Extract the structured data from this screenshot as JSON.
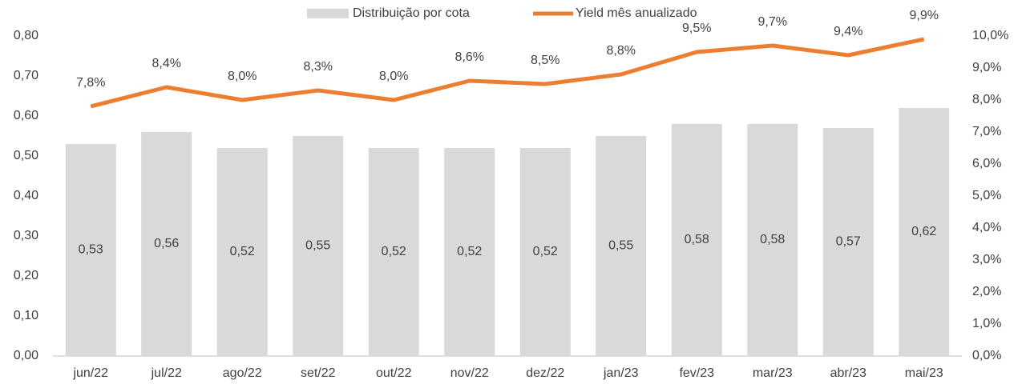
{
  "chart_data": {
    "type": "bar_line",
    "categories": [
      "jun/22",
      "jul/22",
      "ago/22",
      "set/22",
      "out/22",
      "nov/22",
      "dez/22",
      "jan/23",
      "fev/23",
      "mar/23",
      "abr/23",
      "mai/23"
    ],
    "series": [
      {
        "name": "Distribuição por cota",
        "type": "bar",
        "color": "#d9d9d9",
        "values": [
          0.53,
          0.56,
          0.52,
          0.55,
          0.52,
          0.52,
          0.52,
          0.55,
          0.58,
          0.58,
          0.57,
          0.62
        ],
        "value_labels": [
          "0,53",
          "0,56",
          "0,52",
          "0,55",
          "0,52",
          "0,52",
          "0,52",
          "0,55",
          "0,58",
          "0,58",
          "0,57",
          "0,62"
        ]
      },
      {
        "name": "Yield mês anualizado",
        "type": "line",
        "axis": "y2",
        "color": "#ed7d31",
        "values": [
          7.8,
          8.4,
          8.0,
          8.3,
          8.0,
          8.6,
          8.5,
          8.8,
          9.5,
          9.7,
          9.4,
          9.9
        ],
        "value_labels": [
          "7,8%",
          "8,4%",
          "8,0%",
          "8,3%",
          "8,0%",
          "8,6%",
          "8,5%",
          "8,8%",
          "9,5%",
          "9,7%",
          "9,4%",
          "9,9%"
        ]
      }
    ],
    "ylim": [
      0,
      0.8
    ],
    "yticks": [
      {
        "value": 0,
        "label": "0,00"
      },
      {
        "value": 0.1,
        "label": "0,10"
      },
      {
        "value": 0.2,
        "label": "0,20"
      },
      {
        "value": 0.3,
        "label": "0,30"
      },
      {
        "value": 0.4,
        "label": "0,40"
      },
      {
        "value": 0.5,
        "label": "0,50"
      },
      {
        "value": 0.6,
        "label": "0,60"
      },
      {
        "value": 0.7,
        "label": "0,70"
      },
      {
        "value": 0.8,
        "label": "0,80"
      }
    ],
    "y2lim": [
      0,
      10
    ],
    "y2ticks": [
      {
        "value": 0,
        "label": "0,0%"
      },
      {
        "value": 1,
        "label": "1,0%"
      },
      {
        "value": 2,
        "label": "2,0%"
      },
      {
        "value": 3,
        "label": "3,0%"
      },
      {
        "value": 4,
        "label": "4,0%"
      },
      {
        "value": 5,
        "label": "5,0%"
      },
      {
        "value": 6,
        "label": "6,0%"
      },
      {
        "value": 7,
        "label": "7,0%"
      },
      {
        "value": 8,
        "label": "8,0%"
      },
      {
        "value": 9,
        "label": "9,0%"
      },
      {
        "value": 10,
        "label": "10,0%"
      }
    ],
    "legend": "top",
    "grid": false
  }
}
